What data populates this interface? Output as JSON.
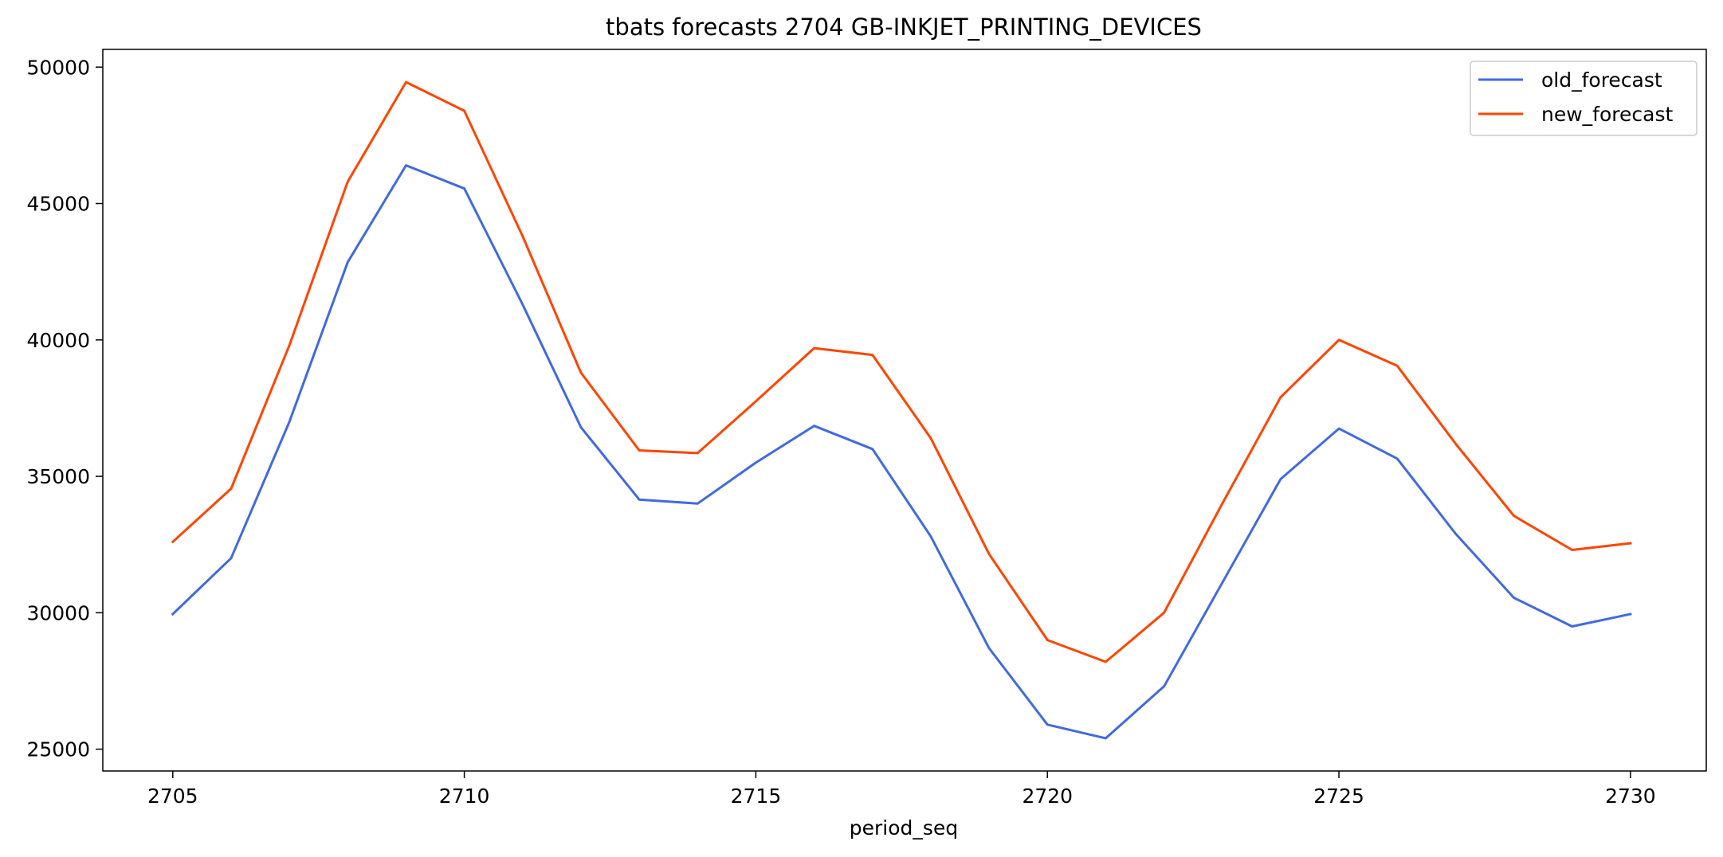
{
  "chart_data": {
    "type": "line",
    "title": "tbats forecasts 2704 GB-INKJET_PRINTING_DEVICES",
    "xlabel": "period_seq",
    "ylabel": "",
    "x": [
      2705,
      2706,
      2707,
      2708,
      2709,
      2710,
      2711,
      2712,
      2713,
      2714,
      2715,
      2716,
      2717,
      2718,
      2719,
      2720,
      2721,
      2722,
      2723,
      2724,
      2725,
      2726,
      2727,
      2728,
      2729,
      2730
    ],
    "xticks": [
      "2705",
      "2710",
      "2715",
      "2720",
      "2725",
      "2730"
    ],
    "yticks": [
      "25000",
      "30000",
      "35000",
      "40000",
      "45000",
      "50000"
    ],
    "xlim": [
      2703.8,
      2731.3
    ],
    "ylim": [
      24200,
      50650
    ],
    "grid": false,
    "legend_position": "top-right",
    "series": [
      {
        "name": "old_forecast",
        "color": "#4169e1",
        "values": [
          29950,
          32000,
          37000,
          42850,
          46400,
          45550,
          41300,
          36800,
          34150,
          34000,
          35500,
          36850,
          36000,
          32800,
          28700,
          25900,
          25400,
          27300,
          31100,
          34900,
          36750,
          35650,
          32900,
          30550,
          29500,
          29950
        ]
      },
      {
        "name": "new_forecast",
        "color": "#ff4500",
        "values": [
          32600,
          34550,
          39800,
          45800,
          49450,
          48400,
          43800,
          38800,
          35950,
          35850,
          37750,
          39700,
          39450,
          36400,
          32150,
          29000,
          28200,
          30000,
          34000,
          37900,
          40000,
          39050,
          36200,
          33550,
          32300,
          32550
        ]
      }
    ]
  }
}
